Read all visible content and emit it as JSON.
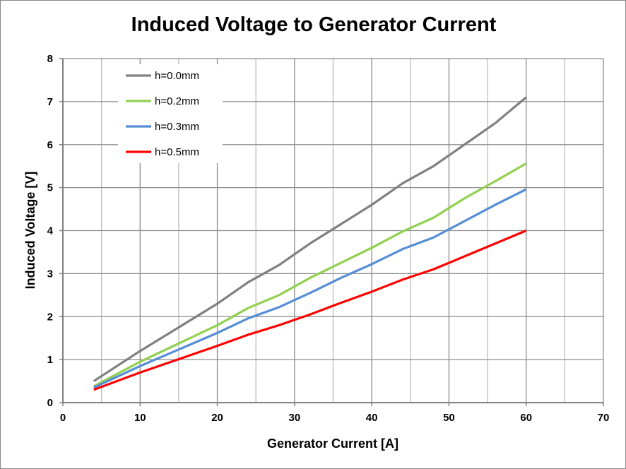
{
  "chart_data": {
    "type": "line",
    "title": "Induced Voltage to Generator Current",
    "xlabel": "Generator Current [A]",
    "ylabel": "Induced Voltage [V]",
    "xlim": [
      0,
      70
    ],
    "ylim": [
      0,
      8
    ],
    "xticks": [
      0,
      10,
      20,
      30,
      40,
      50,
      60,
      70
    ],
    "yticks": [
      0,
      1,
      2,
      3,
      4,
      5,
      6,
      7,
      8
    ],
    "grid": true,
    "legend_position": "top-left",
    "x": [
      4,
      10,
      20,
      24,
      28,
      32,
      36,
      40,
      44,
      48,
      52,
      56,
      60
    ],
    "series": [
      {
        "name": "h=0.0mm",
        "color": "#808080",
        "values": [
          0.5,
          1.2,
          2.3,
          2.8,
          3.2,
          3.7,
          4.15,
          4.6,
          5.1,
          5.5,
          6.0,
          6.5,
          7.1
        ]
      },
      {
        "name": "h=0.2mm",
        "color": "#92d050",
        "values": [
          0.38,
          0.95,
          1.8,
          2.2,
          2.5,
          2.9,
          3.25,
          3.6,
          3.98,
          4.3,
          4.75,
          5.15,
          5.56
        ]
      },
      {
        "name": "h=0.3mm",
        "color": "#558ed5",
        "values": [
          0.35,
          0.85,
          1.62,
          1.96,
          2.22,
          2.55,
          2.9,
          3.22,
          3.57,
          3.84,
          4.22,
          4.6,
          4.96
        ]
      },
      {
        "name": "h=0.5mm",
        "color": "#ff0000",
        "values": [
          0.3,
          0.7,
          1.32,
          1.58,
          1.8,
          2.05,
          2.32,
          2.58,
          2.86,
          3.1,
          3.4,
          3.7,
          4.0
        ]
      }
    ]
  }
}
